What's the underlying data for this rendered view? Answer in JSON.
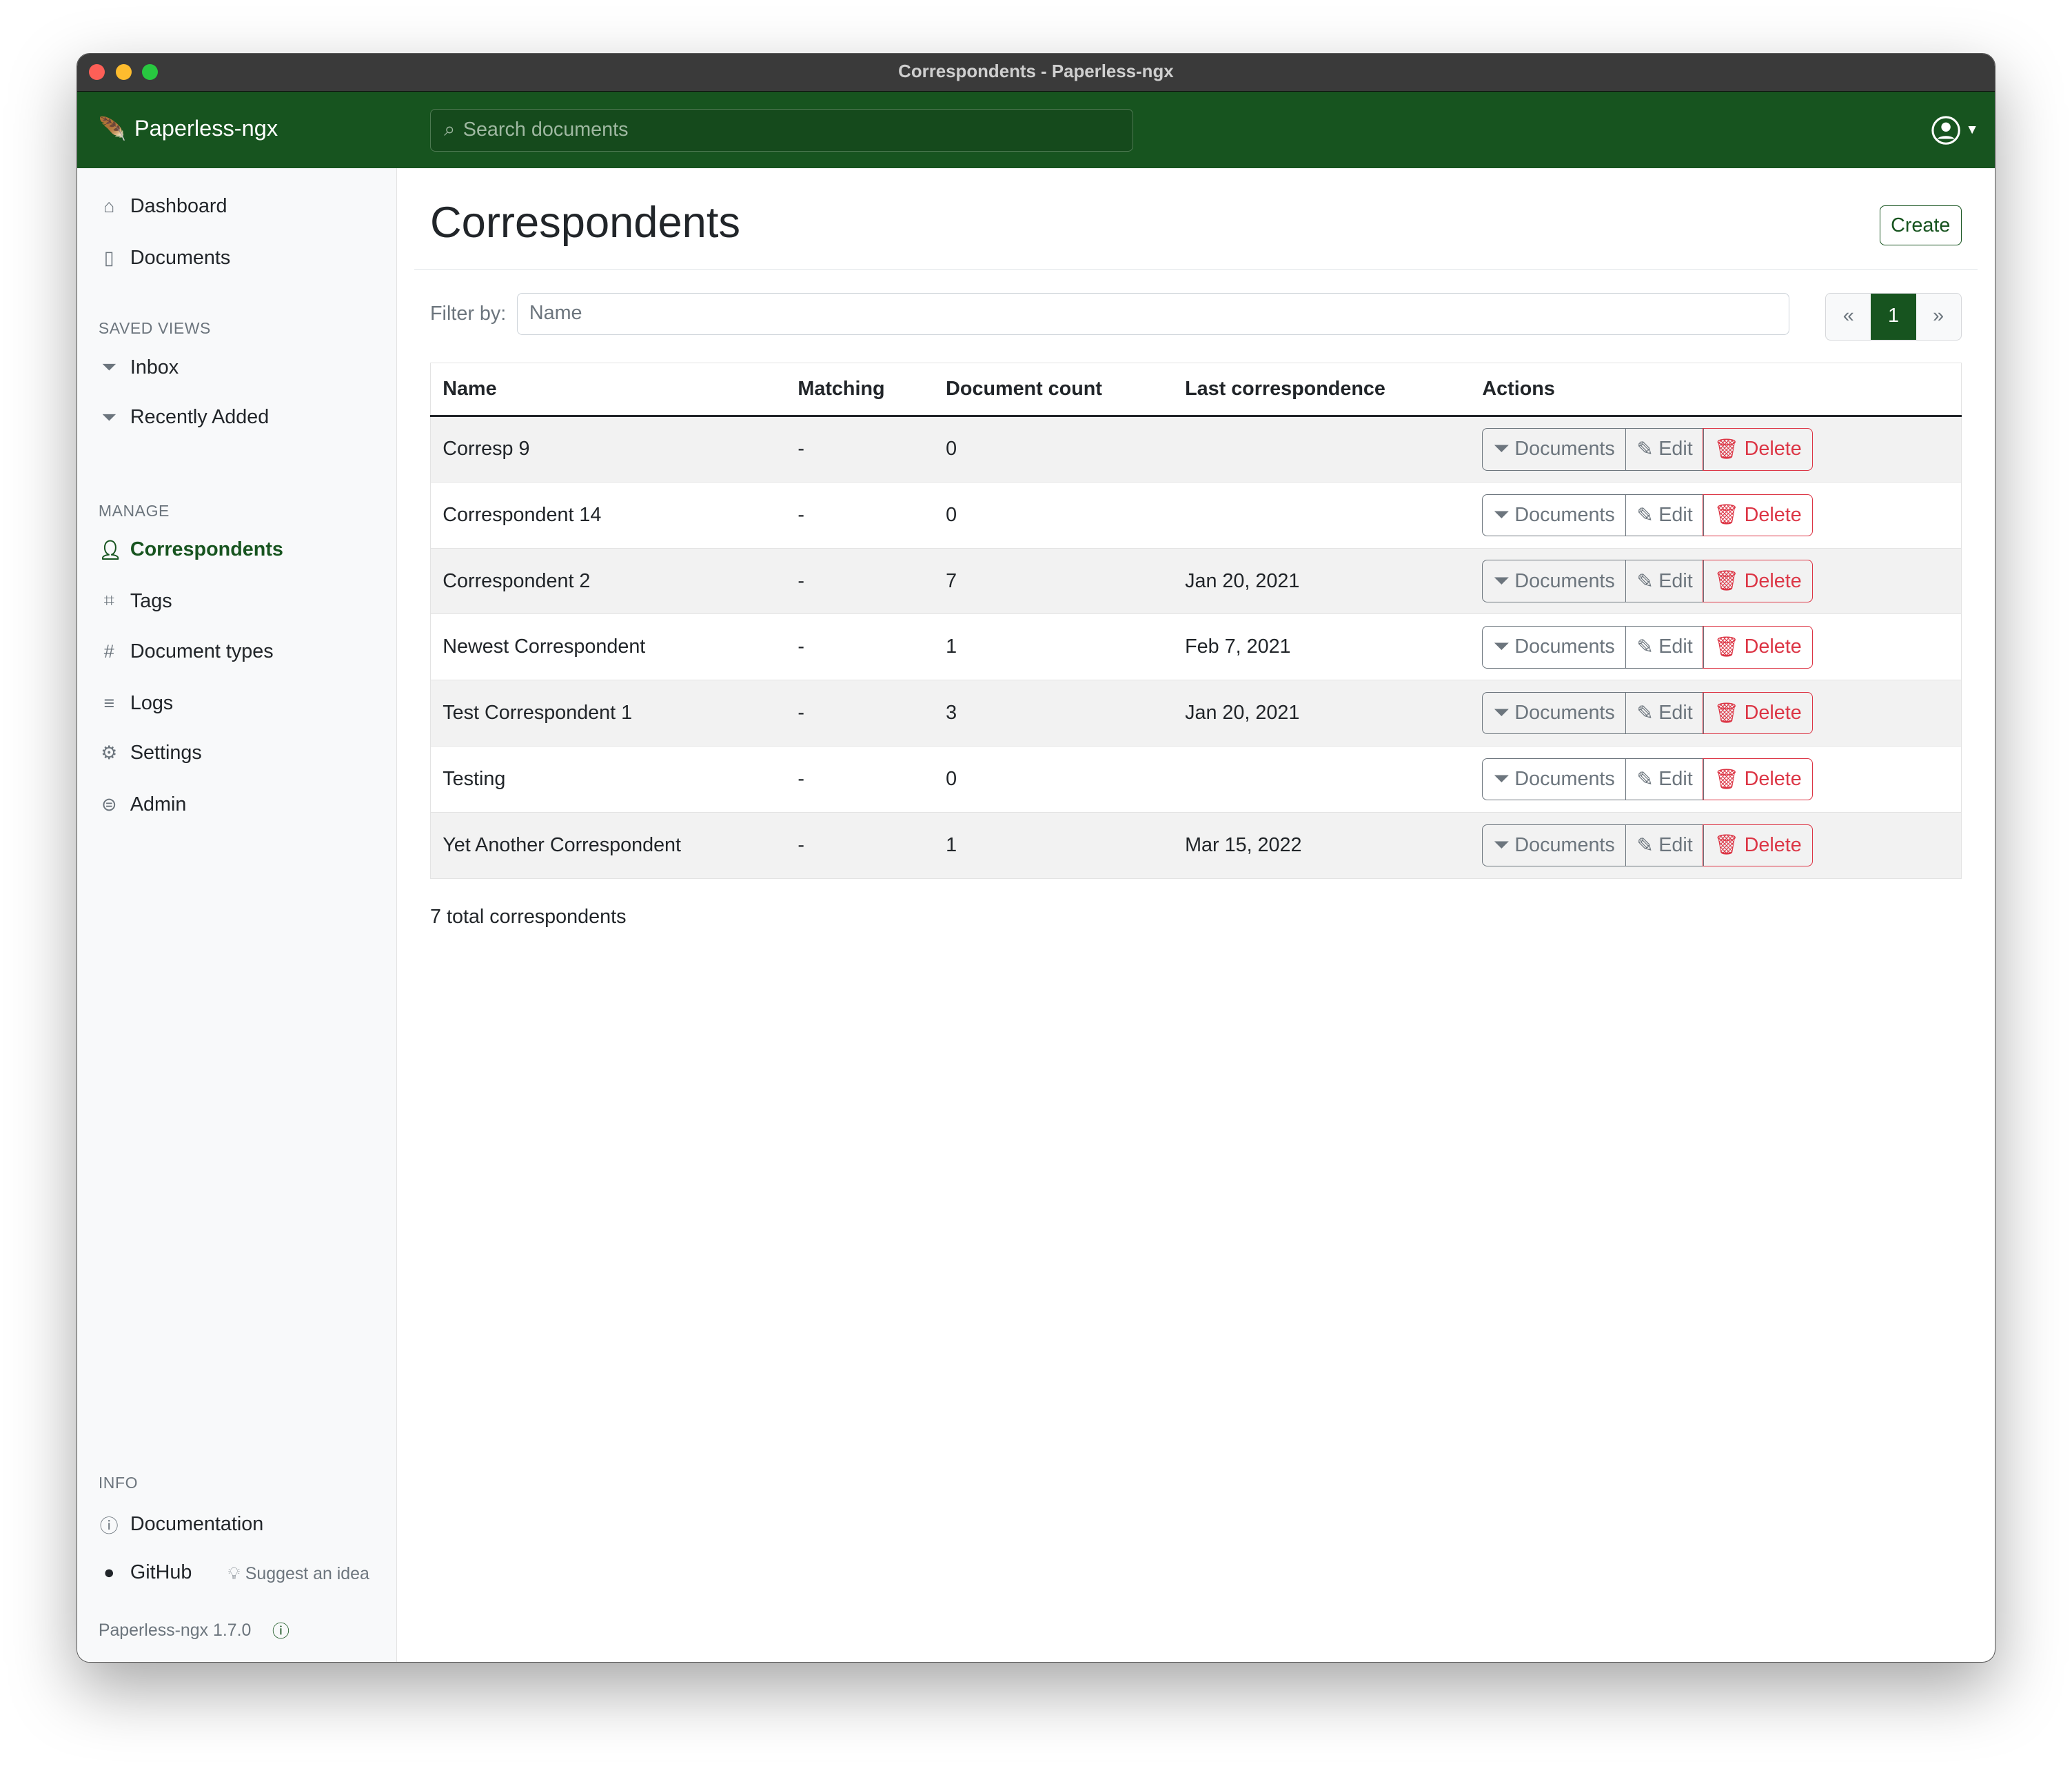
{
  "window": {
    "title": "Correspondents - Paperless-ngx"
  },
  "header": {
    "brand": "Paperless-ngx",
    "search_placeholder": "Search documents"
  },
  "sidebar": {
    "items": [
      {
        "label": "Dashboard",
        "icon": "house-icon"
      },
      {
        "label": "Documents",
        "icon": "files-icon"
      }
    ],
    "saved_views_heading": "SAVED VIEWS",
    "saved_views": [
      {
        "label": "Inbox"
      },
      {
        "label": "Recently Added"
      }
    ],
    "manage_heading": "MANAGE",
    "manage": [
      {
        "label": "Correspondents",
        "icon": "person-icon",
        "active": true
      },
      {
        "label": "Tags",
        "icon": "tags-icon"
      },
      {
        "label": "Document types",
        "icon": "hash-icon"
      },
      {
        "label": "Logs",
        "icon": "text-left-icon"
      },
      {
        "label": "Settings",
        "icon": "gear-icon"
      },
      {
        "label": "Admin",
        "icon": "toggles-icon"
      }
    ],
    "info_heading": "INFO",
    "documentation": "Documentation",
    "github": "GitHub",
    "suggest": "Suggest an idea",
    "version": "Paperless-ngx 1.7.0"
  },
  "main": {
    "title": "Correspondents",
    "create_label": "Create",
    "filter_label": "Filter by:",
    "filter_placeholder": "Name",
    "pager": {
      "prev": "«",
      "current": "1",
      "next": "»"
    },
    "columns": [
      "Name",
      "Matching",
      "Document count",
      "Last correspondence",
      "Actions"
    ],
    "actions": {
      "documents": "Documents",
      "edit": "Edit",
      "delete": "Delete"
    },
    "rows": [
      {
        "name": "Corresp 9",
        "matching": "-",
        "count": "0",
        "last": ""
      },
      {
        "name": "Correspondent 14",
        "matching": "-",
        "count": "0",
        "last": ""
      },
      {
        "name": "Correspondent 2",
        "matching": "-",
        "count": "7",
        "last": "Jan 20, 2021"
      },
      {
        "name": "Newest Correspondent",
        "matching": "-",
        "count": "1",
        "last": "Feb 7, 2021"
      },
      {
        "name": "Test Correspondent 1",
        "matching": "-",
        "count": "3",
        "last": "Jan 20, 2021"
      },
      {
        "name": "Testing",
        "matching": "-",
        "count": "0",
        "last": ""
      },
      {
        "name": "Yet Another Correspondent",
        "matching": "-",
        "count": "1",
        "last": "Mar 15, 2022"
      }
    ],
    "total": "7 total correspondents"
  },
  "colors": {
    "brand": "#17541f",
    "danger": "#dc3545"
  }
}
